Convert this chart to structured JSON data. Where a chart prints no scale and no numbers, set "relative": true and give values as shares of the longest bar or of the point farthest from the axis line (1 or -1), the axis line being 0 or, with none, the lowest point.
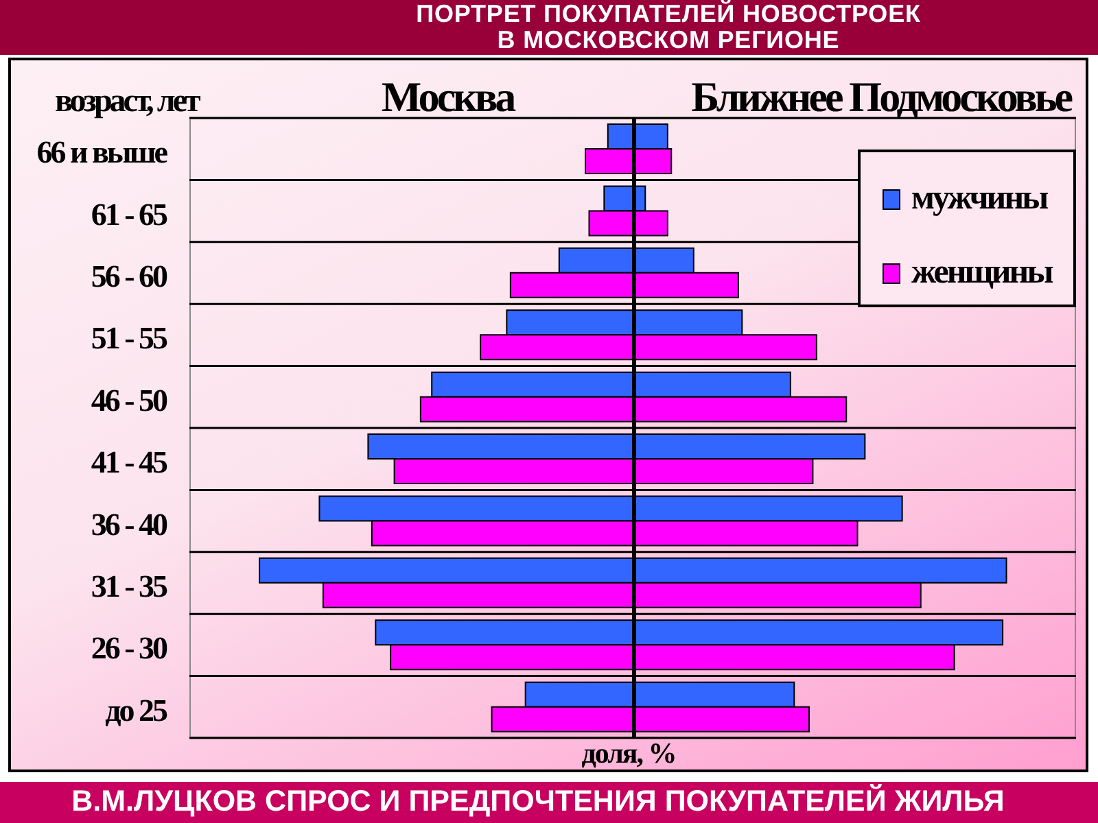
{
  "chart_data": [
    {
      "type": "bar",
      "orientation": "horizontal",
      "relative": true,
      "title": "ПОРТРЕТ ПОКУПАТЕЛЕЙ НОВОСТРОЕК В МОСКОВСКОМ РЕГИОНЕ",
      "subtitle": "Москва",
      "ylabel": "возраст, лет",
      "xlabel": "доля, %",
      "grid": "y",
      "categories": [
        "66 и выше",
        "61 - 65",
        "56 - 60",
        "51 - 55",
        "46 - 50",
        "41 - 45",
        "36 - 40",
        "31 - 35",
        "26 - 30",
        "до 25"
      ],
      "series": [
        {
          "color": "#3366ff",
          "values": [
            -0.07,
            -0.08,
            -0.2,
            -0.34,
            -0.54,
            -0.71,
            -0.84,
            -1,
            -0.69,
            -0.29
          ]
        },
        {
          "color": "#ff00ff",
          "values": [
            -0.13,
            -0.12,
            -0.33,
            -0.41,
            -0.57,
            -0.64,
            -0.7,
            -0.83,
            -0.65,
            -0.38
          ]
        }
      ],
      "annotations": [
        "В.М.ЛУЦКОВ СПРОС И ПРЕДПОЧТЕНИЯ ПОКУПАТЕЛЕЙ ЖИЛЬЯ"
      ]
    },
    {
      "type": "bar",
      "orientation": "horizontal",
      "relative": true,
      "subtitle": "Ближнее Подмосковье",
      "grid": "y",
      "legend": "top right",
      "categories": [
        null,
        null,
        null,
        null,
        null,
        null,
        null,
        null,
        null,
        null
      ],
      "series": [
        {
          "name": "мужчины",
          "color": "#3366ff",
          "values": [
            0.09,
            0.03,
            0.16,
            0.29,
            0.42,
            0.62,
            0.72,
            1,
            0.99,
            0.43
          ]
        },
        {
          "name": "женщины",
          "color": "#ff00ff",
          "values": [
            0.1,
            0.09,
            0.28,
            0.49,
            0.57,
            0.48,
            0.6,
            0.77,
            0.86,
            0.47
          ]
        }
      ]
    }
  ]
}
